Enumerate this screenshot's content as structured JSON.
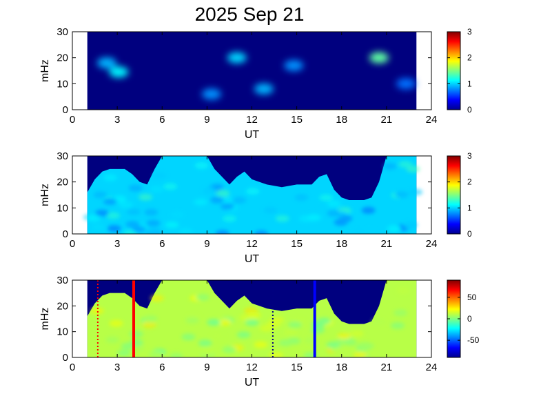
{
  "title": "2025 Sep 21",
  "colormap": [
    "#00008f",
    "#0000ff",
    "#0080ff",
    "#00ffff",
    "#80ff80",
    "#ffff00",
    "#ff8000",
    "#ff0000",
    "#800000"
  ],
  "background_color": "#00007f",
  "chart_data": [
    {
      "type": "heatmap",
      "panel": "top",
      "xlabel": "UT",
      "ylabel": "mHz",
      "xlim": [
        0,
        24
      ],
      "ylim": [
        0,
        30
      ],
      "xticks": [
        "0",
        "3",
        "6",
        "9",
        "12",
        "15",
        "18",
        "21",
        "24"
      ],
      "yticks": [
        "0",
        "10",
        "20",
        "30"
      ],
      "data_x_range": [
        1,
        23
      ],
      "colorbar": {
        "range": [
          0,
          3
        ],
        "ticks": [
          "0",
          "1",
          "2",
          "3"
        ]
      },
      "features": [
        {
          "x": 2.3,
          "y": 18,
          "value": 0.9
        },
        {
          "x": 3.1,
          "y": 14.5,
          "value": 1.1
        },
        {
          "x": 9.3,
          "y": 6,
          "value": 0.8
        },
        {
          "x": 11.0,
          "y": 20,
          "value": 1.0
        },
        {
          "x": 12.8,
          "y": 8,
          "value": 0.9
        },
        {
          "x": 14.8,
          "y": 17,
          "value": 0.8
        },
        {
          "x": 20.5,
          "y": 20,
          "value": 1.4
        },
        {
          "x": 22.3,
          "y": 10,
          "value": 0.7
        }
      ]
    },
    {
      "type": "heatmap",
      "panel": "middle",
      "xlabel": "UT",
      "ylabel": "mHz",
      "xlim": [
        0,
        24
      ],
      "ylim": [
        0,
        30
      ],
      "xticks": [
        "0",
        "3",
        "6",
        "9",
        "12",
        "15",
        "18",
        "21",
        "24"
      ],
      "yticks": [
        "0",
        "10",
        "20",
        "30"
      ],
      "data_x_range": [
        1,
        23
      ],
      "colorbar": {
        "range": [
          0,
          3
        ],
        "ticks": [
          "0",
          "1",
          "2",
          "3"
        ]
      },
      "cutoff_x": [
        1.0,
        1.5,
        2.0,
        2.5,
        3.0,
        3.5,
        4.0,
        4.5,
        5.0,
        5.5,
        6.0,
        7.0,
        8.0,
        9.0,
        9.5,
        10.0,
        10.5,
        11.0,
        11.5,
        12.0,
        13.0,
        14.0,
        15.0,
        16.0,
        16.5,
        17.0,
        17.5,
        18.0,
        18.5,
        19.0,
        19.5,
        20.0,
        20.5,
        21.0,
        22.0,
        23.0
      ],
      "cutoff_y": [
        16,
        21,
        24,
        25,
        25,
        25,
        23,
        20,
        19,
        25,
        30,
        30,
        30,
        30,
        25,
        22,
        19,
        22,
        24,
        21,
        19,
        18,
        19,
        19,
        22,
        23,
        17,
        14,
        13,
        13,
        13,
        14,
        20,
        30,
        30,
        30
      ],
      "value": 1.0
    },
    {
      "type": "heatmap",
      "panel": "bottom",
      "xlabel": "UT",
      "ylabel": "mHz",
      "xlim": [
        0,
        24
      ],
      "ylim": [
        0,
        30
      ],
      "xticks": [
        "0",
        "3",
        "6",
        "9",
        "12",
        "15",
        "18",
        "21",
        "24"
      ],
      "yticks": [
        "0",
        "10",
        "20",
        "30"
      ],
      "data_x_range": [
        1,
        23
      ],
      "colorbar": {
        "range": [
          -90,
          90
        ],
        "ticks": [
          "50",
          "0",
          "-50"
        ],
        "tick_values": [
          50,
          0,
          -50
        ]
      },
      "cutoff_x": [
        1.0,
        1.5,
        2.0,
        2.5,
        3.0,
        3.5,
        4.0,
        4.5,
        5.0,
        5.5,
        6.0,
        7.0,
        8.0,
        9.0,
        9.5,
        10.0,
        10.5,
        11.0,
        11.5,
        12.0,
        13.0,
        14.0,
        15.0,
        16.0,
        16.5,
        17.0,
        17.5,
        18.0,
        18.5,
        19.0,
        19.5,
        20.0,
        20.5,
        21.0,
        22.0,
        23.0
      ],
      "cutoff_y": [
        16,
        21,
        24,
        25,
        25,
        25,
        23,
        20,
        19,
        25,
        30,
        30,
        30,
        30,
        25,
        22,
        19,
        22,
        24,
        21,
        19,
        18,
        19,
        19,
        22,
        23,
        17,
        14,
        13,
        13,
        13,
        14,
        20,
        30,
        30,
        30
      ],
      "value": 10,
      "markers": [
        {
          "x": 1.7,
          "style": "dotted",
          "color": "#ff0000"
        },
        {
          "x": 4.1,
          "style": "solid",
          "color": "#ff0000"
        },
        {
          "x": 13.4,
          "style": "dotted",
          "color": "#000080"
        },
        {
          "x": 16.2,
          "style": "solid",
          "color": "#0000ff"
        }
      ]
    }
  ]
}
